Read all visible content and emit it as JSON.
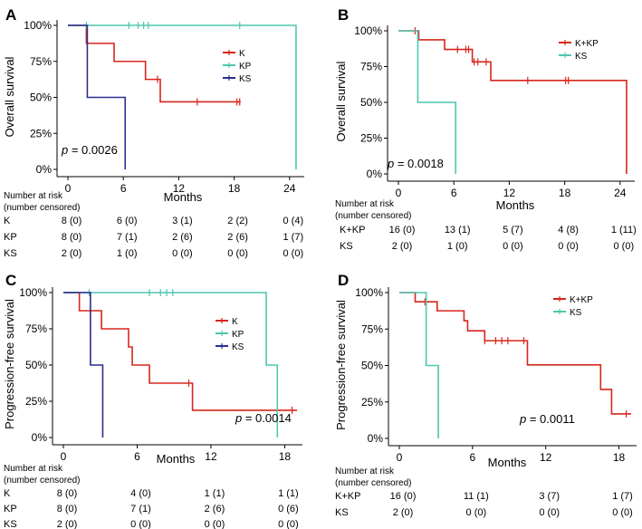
{
  "chart_data": [
    {
      "type": "line",
      "id": "A",
      "panel_label": "A",
      "ylabel": "Overall survival",
      "xlabel": "Months",
      "xlim": [
        0,
        25
      ],
      "ylim": [
        0,
        100
      ],
      "xticks": [
        0,
        6,
        12,
        18,
        24
      ],
      "yticks": [
        0,
        25,
        50,
        75,
        100
      ],
      "ytick_labels": [
        "0%",
        "25%",
        "50%",
        "75%",
        "100%"
      ],
      "p_value": "= 0.0026",
      "p_symbol": "p",
      "legend": [
        "K",
        "KP",
        "KS"
      ],
      "series": [
        {
          "name": "K",
          "color": "#d7261b",
          "steps": [
            [
              0,
              100
            ],
            [
              2,
              87.5
            ],
            [
              5,
              75
            ],
            [
              8.4,
              62.5
            ],
            [
              10,
              46.9
            ],
            [
              18.7,
              46.9
            ]
          ],
          "censors": [
            [
              9.7,
              62.5
            ],
            [
              14,
              46.9
            ],
            [
              18.3,
              46.9
            ],
            [
              18.6,
              46.9
            ]
          ]
        },
        {
          "name": "KP",
          "color": "#4fc6b0",
          "steps": [
            [
              0,
              100
            ],
            [
              24.7,
              0
            ]
          ],
          "censors": [
            [
              2,
              100
            ],
            [
              6.6,
              100
            ],
            [
              7.6,
              100
            ],
            [
              8.2,
              100
            ],
            [
              8.7,
              100
            ],
            [
              18.6,
              100
            ]
          ]
        },
        {
          "name": "KS",
          "color": "#2a2e8f",
          "steps": [
            [
              0,
              100
            ],
            [
              2.1,
              50
            ],
            [
              6.2,
              0
            ]
          ],
          "censors": []
        }
      ],
      "risk_table": {
        "header": [
          "Number at risk",
          "(number censored)"
        ],
        "times": [
          0,
          6,
          12,
          18,
          24
        ],
        "rows": [
          {
            "group": "K",
            "values": [
              "8 (0)",
              "6 (0)",
              "3 (1)",
              "2 (2)",
              "0 (4)"
            ]
          },
          {
            "group": "KP",
            "values": [
              "8 (0)",
              "7 (1)",
              "2 (6)",
              "2 (6)",
              "1 (7)"
            ]
          },
          {
            "group": "KS",
            "values": [
              "2 (0)",
              "1 (0)",
              "0 (0)",
              "0 (0)",
              "0 (0)"
            ]
          }
        ]
      }
    },
    {
      "type": "line",
      "id": "B",
      "panel_label": "B",
      "ylabel": "Overall survival",
      "xlabel": "Months",
      "xlim": [
        0,
        25
      ],
      "ylim": [
        0,
        100
      ],
      "xticks": [
        0,
        6,
        12,
        18,
        24
      ],
      "yticks": [
        0,
        25,
        50,
        75,
        100
      ],
      "ytick_labels": [
        "0%",
        "25%",
        "50%",
        "75%",
        "100%"
      ],
      "p_value": "= 0.0018",
      "p_symbol": "p",
      "legend": [
        "K+KP",
        "KS"
      ],
      "series": [
        {
          "name": "K+KP",
          "color": "#d7261b",
          "steps": [
            [
              0,
              100
            ],
            [
              2.2,
              93.7
            ],
            [
              5,
              87
            ],
            [
              8,
              78.3
            ],
            [
              10,
              65.3
            ],
            [
              24.7,
              0
            ]
          ],
          "censors": [
            [
              1.8,
              100
            ],
            [
              6.4,
              87
            ],
            [
              7.3,
              87
            ],
            [
              7.6,
              87
            ],
            [
              8.2,
              78.3
            ],
            [
              8.6,
              78.3
            ],
            [
              9.5,
              78.3
            ],
            [
              14,
              65.3
            ],
            [
              18.1,
              65.3
            ],
            [
              18.4,
              65.3
            ]
          ]
        },
        {
          "name": "KS",
          "color": "#4fc6b0",
          "steps": [
            [
              0,
              100
            ],
            [
              2.1,
              50
            ],
            [
              6.2,
              0
            ]
          ],
          "censors": []
        }
      ],
      "risk_table": {
        "header": [
          "Number at risk",
          "(number censored)"
        ],
        "times": [
          0,
          6,
          12,
          18,
          24
        ],
        "rows": [
          {
            "group": "K+KP",
            "values": [
              "16 (0)",
              "13 (1)",
              "5 (7)",
              "4 (8)",
              "1 (11)"
            ]
          },
          {
            "group": "KS",
            "values": [
              "2 (0)",
              "1 (0)",
              "0 (0)",
              "0 (0)",
              "0 (0)"
            ]
          }
        ]
      }
    },
    {
      "type": "line",
      "id": "C",
      "panel_label": "C",
      "ylabel": "Progression-free survival",
      "xlabel": "Months",
      "xlim": [
        0,
        19
      ],
      "ylim": [
        0,
        100
      ],
      "xticks": [
        0,
        6,
        12,
        18
      ],
      "yticks": [
        0,
        25,
        50,
        75,
        100
      ],
      "ytick_labels": [
        "0%",
        "25%",
        "50%",
        "75%",
        "100%"
      ],
      "p_value": "= 0.0014",
      "p_symbol": "p",
      "legend": [
        "K",
        "KP",
        "KS"
      ],
      "series": [
        {
          "name": "K",
          "color": "#d7261b",
          "steps": [
            [
              0,
              100
            ],
            [
              1.3,
              87.5
            ],
            [
              3.1,
              75
            ],
            [
              5.3,
              62.5
            ],
            [
              5.6,
              50
            ],
            [
              7,
              37.5
            ],
            [
              10.5,
              18.8
            ],
            [
              19,
              18.8
            ]
          ],
          "censors": [
            [
              10.2,
              37.5
            ],
            [
              18.6,
              18.8
            ]
          ]
        },
        {
          "name": "KP",
          "color": "#4fc6b0",
          "steps": [
            [
              0,
              100
            ],
            [
              16.5,
              50
            ],
            [
              17.4,
              0
            ]
          ],
          "censors": [
            [
              2.1,
              100
            ],
            [
              7,
              100
            ],
            [
              7.9,
              100
            ],
            [
              8.4,
              100
            ],
            [
              8.9,
              100
            ]
          ]
        },
        {
          "name": "KS",
          "color": "#2a2e8f",
          "steps": [
            [
              0,
              100
            ],
            [
              2.2,
              50
            ],
            [
              3.2,
              0
            ]
          ],
          "censors": []
        }
      ],
      "risk_table": {
        "header": [
          "Number at risk",
          "(number censored)"
        ],
        "times": [
          0,
          6,
          12,
          18
        ],
        "rows": [
          {
            "group": "K",
            "values": [
              "8 (0)",
              "4 (0)",
              "1 (1)",
              "1 (1)"
            ]
          },
          {
            "group": "KP",
            "values": [
              "8 (0)",
              "7 (1)",
              "2 (6)",
              "0 (6)"
            ]
          },
          {
            "group": "KS",
            "values": [
              "2 (0)",
              "0 (0)",
              "0 (0)",
              "0 (0)"
            ]
          }
        ]
      }
    },
    {
      "type": "line",
      "id": "D",
      "panel_label": "D",
      "ylabel": "Progression-free survival",
      "xlabel": "Months",
      "xlim": [
        0,
        19
      ],
      "ylim": [
        0,
        100
      ],
      "xticks": [
        0,
        6,
        12,
        18
      ],
      "yticks": [
        0,
        25,
        50,
        75,
        100
      ],
      "ytick_labels": [
        "0%",
        "25%",
        "50%",
        "75%",
        "100%"
      ],
      "p_value": "= 0.0011",
      "p_symbol": "p",
      "legend": [
        "K+KP",
        "KS"
      ],
      "series": [
        {
          "name": "K+KP",
          "color": "#d7261b",
          "steps": [
            [
              0,
              100
            ],
            [
              1.3,
              93.7
            ],
            [
              3.1,
              87.5
            ],
            [
              5.3,
              80.7
            ],
            [
              5.6,
              73.8
            ],
            [
              7,
              67
            ],
            [
              10.5,
              50.4
            ],
            [
              16.5,
              33.6
            ],
            [
              17.4,
              16.8
            ],
            [
              19,
              16.8
            ]
          ],
          "censors": [
            [
              2.1,
              93.7
            ],
            [
              7,
              67
            ],
            [
              7.9,
              67
            ],
            [
              8.4,
              67
            ],
            [
              8.9,
              67
            ],
            [
              10.2,
              67
            ],
            [
              18.6,
              16.8
            ]
          ]
        },
        {
          "name": "KS",
          "color": "#4fc6b0",
          "steps": [
            [
              0,
              100
            ],
            [
              2.2,
              50
            ],
            [
              3.2,
              0
            ]
          ],
          "censors": []
        }
      ],
      "risk_table": {
        "header": [
          "Number at risk",
          "(number censored)"
        ],
        "times": [
          0,
          6,
          12,
          18
        ],
        "rows": [
          {
            "group": "K+KP",
            "values": [
              "16 (0)",
              "11 (1)",
              "3 (7)",
              "1 (7)"
            ]
          },
          {
            "group": "KS",
            "values": [
              "2 (0)",
              "0 (0)",
              "0 (0)",
              "0 (0)"
            ]
          }
        ]
      }
    }
  ]
}
